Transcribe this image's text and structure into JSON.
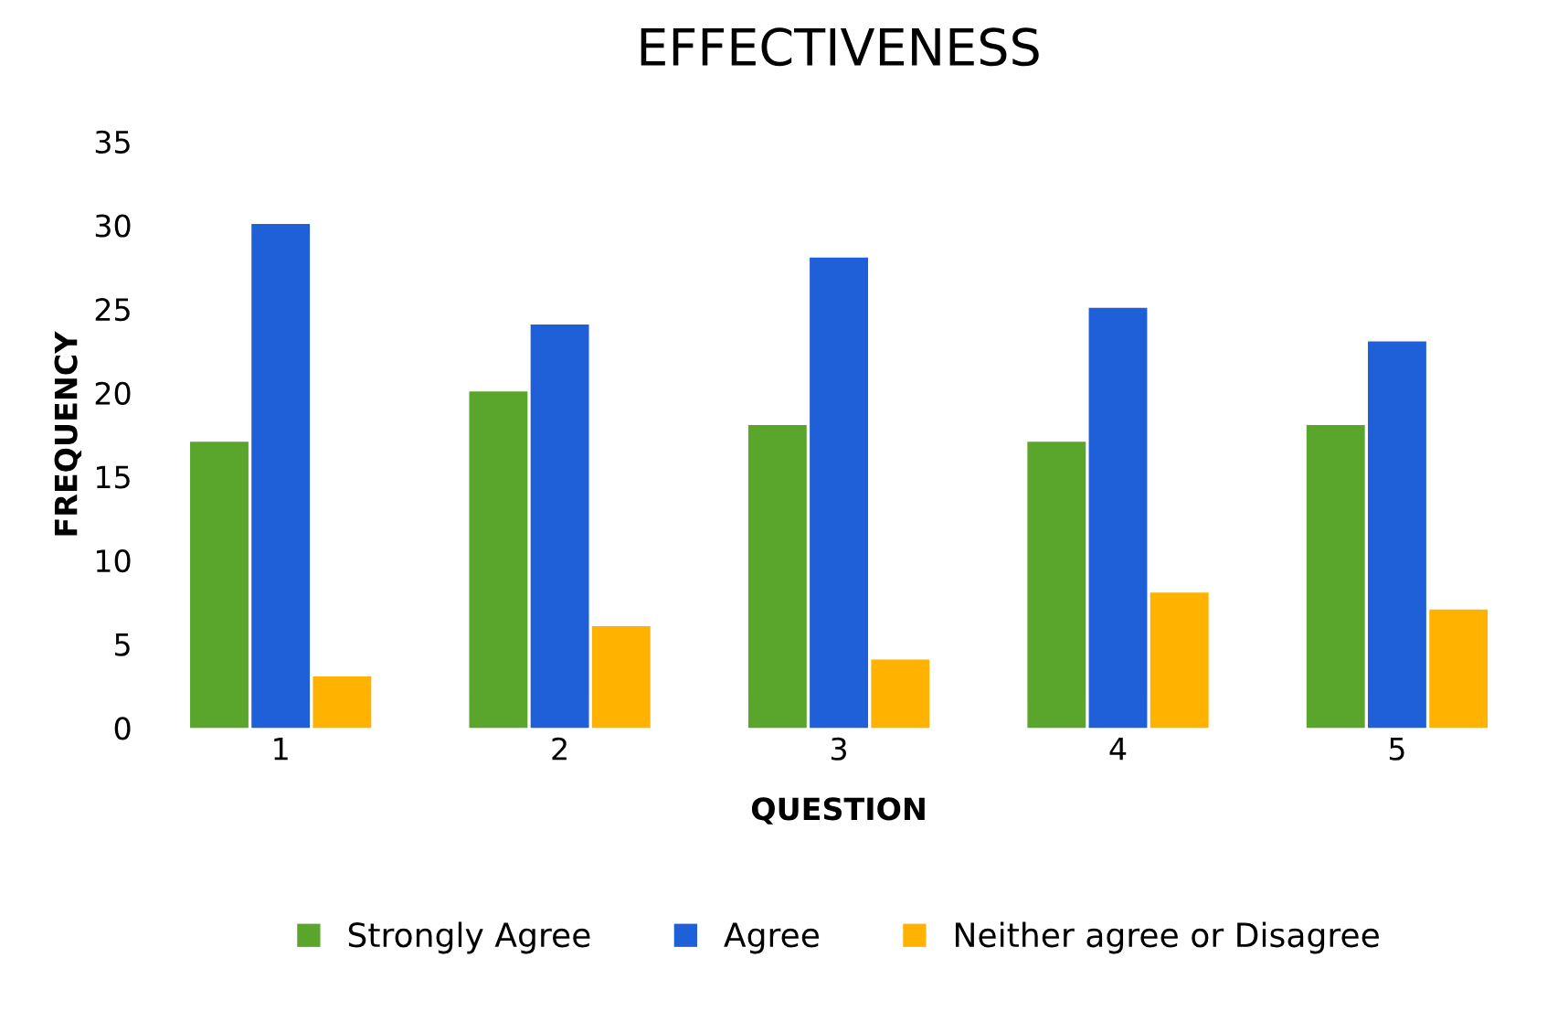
{
  "chart_data": {
    "type": "bar",
    "title": "EFFECTIVENESS",
    "xlabel": "QUESTION",
    "ylabel": "FREQUENCY",
    "categories": [
      "1",
      "2",
      "3",
      "4",
      "5"
    ],
    "series": [
      {
        "name": "Strongly Agree",
        "color": "#5aa52c",
        "values": [
          17,
          20,
          18,
          17,
          18
        ]
      },
      {
        "name": "Agree",
        "color": "#1f5fd8",
        "values": [
          30,
          24,
          28,
          25,
          23
        ]
      },
      {
        "name": "Neither agree or Disagree",
        "color": "#ffb300",
        "values": [
          3,
          6,
          4,
          8,
          7
        ]
      }
    ],
    "ylim": [
      0,
      35
    ],
    "yticks": [
      0,
      5,
      10,
      15,
      20,
      25,
      30,
      35
    ],
    "grid": false,
    "legend": "bottom"
  }
}
